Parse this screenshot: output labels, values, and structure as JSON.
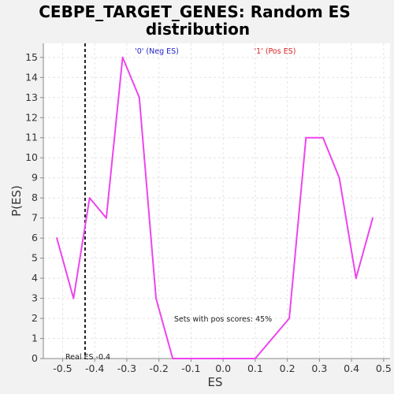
{
  "chart_data": {
    "type": "line",
    "title_line1": "CEBPE_TARGET_GENES: Random ES",
    "title_line2": "distribution",
    "xlabel": "ES",
    "ylabel": "P(ES)",
    "xlim": [
      -0.56,
      0.52
    ],
    "ylim": [
      0,
      15.7
    ],
    "xticks": [
      -0.5,
      -0.4,
      -0.3,
      -0.2,
      -0.1,
      0.0,
      0.1,
      0.2,
      0.3,
      0.4,
      0.5
    ],
    "xtick_labels": [
      "-0.5",
      "-0.4",
      "-0.3",
      "-0.2",
      "-0.1",
      "0.0",
      "0.1",
      "0.2",
      "0.3",
      "0.4",
      "0.5"
    ],
    "yticks": [
      0,
      1,
      2,
      3,
      4,
      5,
      6,
      7,
      8,
      9,
      10,
      11,
      12,
      13,
      14,
      15
    ],
    "grid": true,
    "series": [
      {
        "color": "#ee44ee",
        "x": [
          -0.518,
          -0.466,
          -0.416,
          -0.364,
          -0.313,
          -0.261,
          -0.209,
          -0.157,
          -0.106,
          -0.054,
          -0.002,
          0.1,
          0.206,
          0.258,
          0.311,
          0.362,
          0.414,
          0.466
        ],
        "y": [
          6,
          3,
          8,
          7,
          15,
          13,
          3,
          0,
          0,
          0,
          0,
          0,
          2,
          11,
          11,
          9,
          4,
          7
        ]
      }
    ],
    "real_es": -0.43,
    "annotations": {
      "neg_label": "'0' (Neg ES)",
      "pos_label": "'1' (Pos ES)",
      "pos_scores": "Sets with pos scores: 45%",
      "real_es": "Real ES -0.4"
    },
    "colors": {
      "neg_label": "#2222cc",
      "pos_label": "#dd2222",
      "real_es_line": "#222222"
    }
  }
}
